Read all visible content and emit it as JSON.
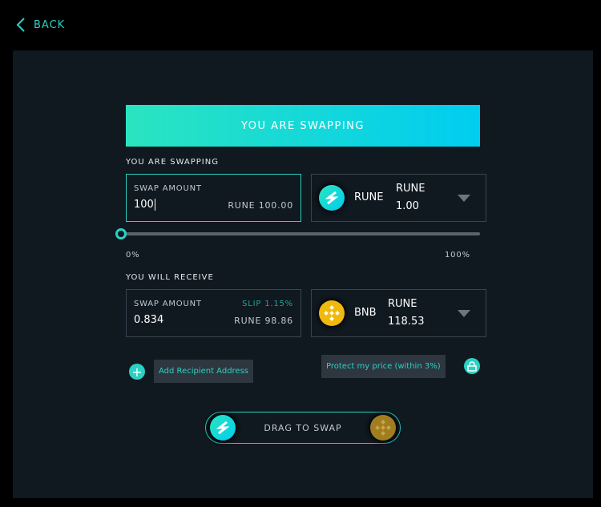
{
  "back_label": "BACK",
  "header_title": "YOU ARE SWAPPING",
  "send": {
    "section": "YOU ARE SWAPPING",
    "amount_label": "SWAP AMOUNT",
    "amount_value": "100",
    "amount_equiv": "RUNE 100.00",
    "token": "RUNE",
    "price_unit": "RUNE",
    "price": "1.00"
  },
  "slider": {
    "value_percent": 0,
    "min_label": "0%",
    "max_label": "100%"
  },
  "receive": {
    "section": "YOU WILL RECEIVE",
    "amount_label": "SWAP AMOUNT",
    "slip": "SLIP 1.15%",
    "amount_value": "0.834",
    "amount_equiv": "RUNE 98.86",
    "token": "BNB",
    "price_unit": "RUNE",
    "price": "118.53"
  },
  "add_recipient": "Add Recipient Address",
  "protect_price": "Protect my price (within 3%)",
  "drag_label": "DRAG TO SWAP",
  "colors": {
    "accent": "#2ad1c2",
    "bnb": "#f0b90b",
    "panel": "#101820"
  }
}
